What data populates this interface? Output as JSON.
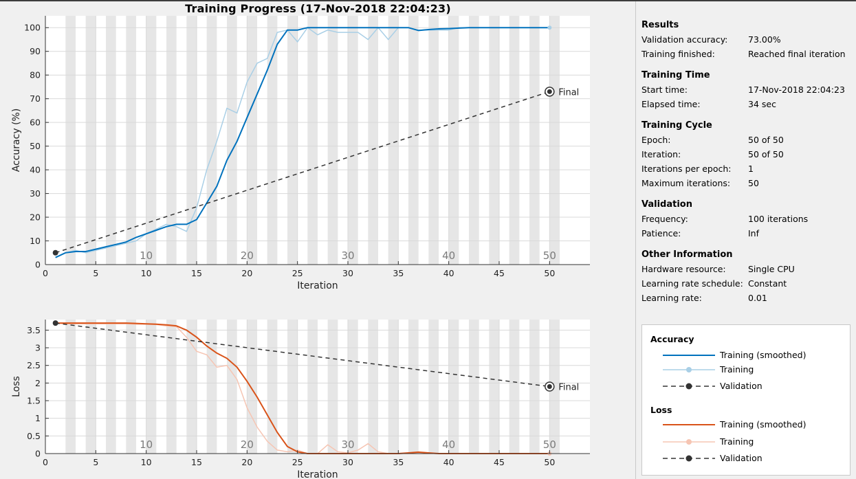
{
  "title": "Training Progress (17-Nov-2018 22:04:23)",
  "chart_data": [
    {
      "type": "line",
      "name": "accuracy",
      "xlabel": "Iteration",
      "ylabel": "Accuracy (%)",
      "xlim": [
        0,
        54
      ],
      "ylim": [
        0,
        105
      ],
      "xticks": [
        0,
        5,
        10,
        15,
        20,
        25,
        30,
        35,
        40,
        45,
        50
      ],
      "yticks": [
        0,
        10,
        20,
        30,
        40,
        50,
        60,
        70,
        80,
        90,
        100
      ],
      "grid": true,
      "epoch_labels": [
        {
          "x": 10,
          "text": "10"
        },
        {
          "x": 20,
          "text": "20"
        },
        {
          "x": 30,
          "text": "30"
        },
        {
          "x": 40,
          "text": "40"
        },
        {
          "x": 50,
          "text": "50"
        }
      ],
      "series": [
        {
          "name": "Training",
          "color": "#a9cfe6",
          "x": [
            1,
            2,
            3,
            4,
            5,
            6,
            7,
            8,
            9,
            10,
            11,
            12,
            13,
            14,
            15,
            16,
            17,
            18,
            19,
            20,
            21,
            22,
            23,
            24,
            25,
            26,
            27,
            28,
            29,
            30,
            31,
            32,
            33,
            34,
            35,
            36,
            37,
            38,
            39,
            40,
            41,
            42,
            43,
            44,
            45,
            46,
            47,
            48,
            49,
            50
          ],
          "y": [
            3,
            5,
            6,
            5,
            6,
            7,
            8,
            9,
            10,
            13,
            15,
            17,
            16,
            14,
            24,
            40,
            52,
            66,
            64,
            77,
            85,
            87,
            98,
            99,
            94,
            100,
            97,
            99,
            98,
            98,
            98,
            95,
            100,
            95,
            100,
            100,
            99,
            99,
            99,
            99,
            100,
            100,
            100,
            100,
            100,
            100,
            100,
            100,
            100,
            100
          ]
        },
        {
          "name": "Training (smoothed)",
          "color": "#0072bd",
          "x": [
            1,
            2,
            3,
            4,
            5,
            6,
            7,
            8,
            9,
            10,
            11,
            12,
            13,
            14,
            15,
            16,
            17,
            18,
            19,
            20,
            21,
            22,
            23,
            24,
            25,
            26,
            27,
            28,
            29,
            30,
            31,
            32,
            33,
            34,
            35,
            36,
            37,
            38,
            39,
            40,
            41,
            42,
            43,
            44,
            45,
            46,
            47,
            48,
            49,
            50
          ],
          "y": [
            3,
            5,
            5.5,
            5.5,
            6.5,
            7.5,
            8.5,
            9.5,
            11.5,
            13,
            14.5,
            16,
            17,
            17,
            19,
            26,
            33,
            44,
            52,
            62,
            72,
            82,
            93,
            99,
            99,
            100,
            100,
            100,
            100,
            100,
            100,
            100,
            100,
            100,
            100,
            100,
            98.8,
            99.2,
            99.5,
            99.6,
            99.8,
            100,
            100,
            100,
            100,
            100,
            100,
            100,
            100,
            100
          ]
        },
        {
          "name": "Validation",
          "color": "#333333",
          "dashed": true,
          "x": [
            1,
            50
          ],
          "y": [
            5,
            73
          ]
        }
      ],
      "final_marker": {
        "x": 50,
        "y": 73,
        "label": "Final"
      }
    },
    {
      "type": "line",
      "name": "loss",
      "xlabel": "Iteration",
      "ylabel": "Loss",
      "xlim": [
        0,
        54
      ],
      "ylim": [
        0,
        3.8
      ],
      "xticks": [
        0,
        5,
        10,
        15,
        20,
        25,
        30,
        35,
        40,
        45,
        50
      ],
      "yticks": [
        0,
        0.5,
        1,
        1.5,
        2,
        2.5,
        3,
        3.5
      ],
      "ytick_labels": [
        "0",
        "0.5",
        "1",
        "1.5",
        "2",
        "2.5",
        "3",
        "3.5"
      ],
      "grid": true,
      "epoch_labels": [
        {
          "x": 10,
          "text": "10"
        },
        {
          "x": 20,
          "text": "20"
        },
        {
          "x": 30,
          "text": "30"
        },
        {
          "x": 40,
          "text": "40"
        },
        {
          "x": 50,
          "text": "50"
        }
      ],
      "series": [
        {
          "name": "Training",
          "color": "#f6c5b3",
          "x": [
            1,
            2,
            3,
            4,
            5,
            6,
            7,
            8,
            9,
            10,
            11,
            12,
            13,
            14,
            15,
            16,
            17,
            18,
            19,
            20,
            21,
            22,
            23,
            24,
            25,
            26,
            27,
            28,
            29,
            30,
            31,
            32,
            33,
            34,
            35,
            36,
            37,
            38,
            39,
            40,
            41,
            42,
            43,
            44,
            45,
            46,
            47,
            48,
            49,
            50
          ],
          "y": [
            3.7,
            3.68,
            3.68,
            3.68,
            3.68,
            3.68,
            3.68,
            3.68,
            3.67,
            3.67,
            3.66,
            3.62,
            3.6,
            3.3,
            2.9,
            2.8,
            2.45,
            2.5,
            2.1,
            1.3,
            0.75,
            0.35,
            0.1,
            0.05,
            0.1,
            0,
            0,
            0.25,
            0.05,
            0.02,
            0.1,
            0.28,
            0.05,
            0,
            0,
            0,
            0,
            0,
            0,
            0,
            0,
            0,
            0,
            0,
            0,
            0,
            0,
            0,
            0,
            0
          ]
        },
        {
          "name": "Training (smoothed)",
          "color": "#d95319",
          "x": [
            1,
            2,
            3,
            4,
            5,
            6,
            7,
            8,
            9,
            10,
            11,
            12,
            13,
            14,
            15,
            16,
            17,
            18,
            19,
            20,
            21,
            22,
            23,
            24,
            25,
            26,
            27,
            28,
            29,
            30,
            31,
            32,
            33,
            34,
            35,
            36,
            37,
            38,
            39,
            40,
            41,
            42,
            43,
            44,
            45,
            46,
            47,
            48,
            49,
            50
          ],
          "y": [
            3.7,
            3.7,
            3.7,
            3.7,
            3.7,
            3.7,
            3.7,
            3.7,
            3.69,
            3.68,
            3.67,
            3.65,
            3.62,
            3.5,
            3.3,
            3.05,
            2.85,
            2.7,
            2.45,
            2.05,
            1.6,
            1.1,
            0.6,
            0.2,
            0.05,
            0,
            0,
            0,
            0,
            0,
            0,
            0,
            0,
            0,
            0,
            0.02,
            0.04,
            0.02,
            0,
            0,
            0,
            0,
            0,
            0,
            0,
            0,
            0,
            0,
            0,
            0
          ]
        },
        {
          "name": "Validation",
          "color": "#333333",
          "dashed": true,
          "x": [
            1,
            50
          ],
          "y": [
            3.7,
            1.9
          ]
        }
      ],
      "final_marker": {
        "x": 50,
        "y": 1.9,
        "label": "Final"
      }
    }
  ],
  "panel": {
    "results": {
      "title": "Results",
      "rows": [
        {
          "k": "Validation accuracy:",
          "v": "73.00%"
        },
        {
          "k": "Training finished:",
          "v": "Reached final iteration"
        }
      ]
    },
    "training_time": {
      "title": "Training Time",
      "rows": [
        {
          "k": "Start time:",
          "v": "17-Nov-2018 22:04:23"
        },
        {
          "k": "Elapsed time:",
          "v": "34 sec"
        }
      ]
    },
    "training_cycle": {
      "title": "Training Cycle",
      "rows": [
        {
          "k": "Epoch:",
          "v": "50 of 50"
        },
        {
          "k": "Iteration:",
          "v": "50 of 50"
        },
        {
          "k": "Iterations per epoch:",
          "v": "1"
        },
        {
          "k": "Maximum iterations:",
          "v": "50"
        }
      ]
    },
    "validation": {
      "title": "Validation",
      "rows": [
        {
          "k": "Frequency:",
          "v": "100 iterations"
        },
        {
          "k": "Patience:",
          "v": "Inf"
        }
      ]
    },
    "other": {
      "title": "Other Information",
      "rows": [
        {
          "k": "Hardware resource:",
          "v": "Single CPU"
        },
        {
          "k": "Learning rate schedule:",
          "v": "Constant"
        },
        {
          "k": "Learning rate:",
          "v": "0.01"
        }
      ]
    }
  },
  "legend": {
    "accuracy": {
      "title": "Accuracy",
      "items": [
        "Training (smoothed)",
        "Training",
        "Validation"
      ],
      "colors": [
        "#0072bd",
        "#a9cfe6",
        "#333333"
      ]
    },
    "loss": {
      "title": "Loss",
      "items": [
        "Training (smoothed)",
        "Training",
        "Validation"
      ],
      "colors": [
        "#d95319",
        "#f6c5b3",
        "#333333"
      ]
    }
  }
}
